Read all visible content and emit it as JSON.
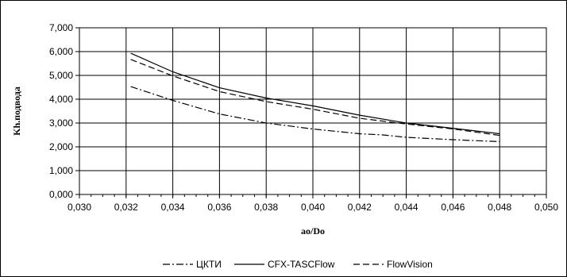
{
  "chart_data": {
    "type": "line",
    "title": "",
    "xlabel": "ao/Do",
    "ylabel": "Kh.подвода",
    "xlim": [
      0.03,
      0.05
    ],
    "ylim": [
      0,
      7
    ],
    "x_ticks": [
      "0,030",
      "0,032",
      "0,034",
      "0,036",
      "0,038",
      "0,040",
      "0,042",
      "0,044",
      "0,046",
      "0,048",
      "0,050"
    ],
    "y_ticks": [
      "0,000",
      "1,000",
      "2,000",
      "3,000",
      "4,000",
      "5,000",
      "6,000",
      "7,000"
    ],
    "x_tick_values": [
      0.03,
      0.032,
      0.034,
      0.036,
      0.038,
      0.04,
      0.042,
      0.044,
      0.046,
      0.048,
      0.05
    ],
    "y_tick_values": [
      0,
      1,
      2,
      3,
      4,
      5,
      6,
      7
    ],
    "grid": true,
    "legend_position": "bottom",
    "series": [
      {
        "name": "ЦКТИ",
        "style": "dash-dot",
        "color": "#000000",
        "x": [
          0.0322,
          0.034,
          0.036,
          0.038,
          0.04,
          0.042,
          0.043,
          0.044,
          0.046,
          0.048
        ],
        "y": [
          4.53,
          3.95,
          3.38,
          3.0,
          2.75,
          2.55,
          2.5,
          2.4,
          2.3,
          2.22
        ]
      },
      {
        "name": "CFX-TASCFlow",
        "style": "solid",
        "color": "#000000",
        "x": [
          0.0322,
          0.034,
          0.036,
          0.038,
          0.04,
          0.042,
          0.044,
          0.046,
          0.048
        ],
        "y": [
          5.93,
          5.15,
          4.48,
          4.05,
          3.72,
          3.33,
          3.0,
          2.78,
          2.55
        ]
      },
      {
        "name": "FlowVision",
        "style": "dashed",
        "color": "#000000",
        "x": [
          0.0322,
          0.034,
          0.036,
          0.038,
          0.04,
          0.042,
          0.044,
          0.046,
          0.048
        ],
        "y": [
          5.67,
          4.98,
          4.32,
          3.9,
          3.58,
          3.2,
          2.96,
          2.75,
          2.48
        ]
      }
    ]
  }
}
